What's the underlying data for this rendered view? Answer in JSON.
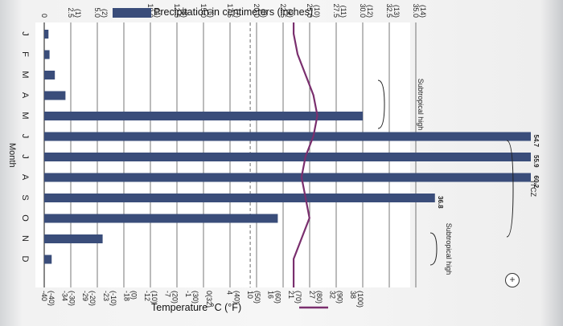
{
  "chart_data": {
    "type": "bar",
    "orientation": "rotated 90° clockwise (month axis runs left to right along the bottom, value axes rotated)",
    "legend": [
      {
        "label": "Precipitation in centimeters (inches)",
        "color": "#3a4d7a"
      },
      {
        "label": "Temperature °C (°F)",
        "color": "#7a2f6e"
      }
    ],
    "xlabel": "Month",
    "categories": [
      "J",
      "F",
      "M",
      "A",
      "M",
      "J",
      "J",
      "A",
      "S",
      "O",
      "N",
      "D"
    ],
    "precip_ticks": [
      {
        "top": "0",
        "bottom": ""
      },
      {
        "top": "2.5",
        "bottom": "(1)"
      },
      {
        "top": "5.0",
        "bottom": "(2)"
      },
      {
        "top": "7.5",
        "bottom": "(3)"
      },
      {
        "top": "10.0",
        "bottom": "(4)"
      },
      {
        "top": "12.5",
        "bottom": "(5)"
      },
      {
        "top": "15.0",
        "bottom": "(6)"
      },
      {
        "top": "17.5",
        "bottom": "(7)"
      },
      {
        "top": "20.0",
        "bottom": "(8)"
      },
      {
        "top": "22.5",
        "bottom": "(9)"
      },
      {
        "top": "25.0",
        "bottom": "(10)"
      },
      {
        "top": "27.5",
        "bottom": "(11)"
      },
      {
        "top": "30.0",
        "bottom": "(12)"
      },
      {
        "top": "32.5",
        "bottom": "(13)"
      },
      {
        "top": "35.0",
        "bottom": "(14)"
      }
    ],
    "temp_ticks": [
      {
        "top": "-40",
        "bottom": "(-40)"
      },
      {
        "top": "-34",
        "bottom": "(-30)"
      },
      {
        "top": "-29",
        "bottom": "(-20)"
      },
      {
        "top": "-23",
        "bottom": "(-10)"
      },
      {
        "top": "-18",
        "bottom": "(0)"
      },
      {
        "top": "-12",
        "bottom": "(10)"
      },
      {
        "top": "-7",
        "bottom": "(20)"
      },
      {
        "top": "-1",
        "bottom": "(30)"
      },
      {
        "top": "0(32)",
        "bottom": ""
      },
      {
        "top": "4",
        "bottom": "(40)"
      },
      {
        "top": "10",
        "bottom": "(50)"
      },
      {
        "top": "16",
        "bottom": "(60)"
      },
      {
        "top": "21",
        "bottom": "(70)"
      },
      {
        "top": "27",
        "bottom": "(80)"
      },
      {
        "top": "32",
        "bottom": "(90)"
      },
      {
        "top": "38",
        "bottom": "(100)"
      }
    ],
    "values": [
      0.4,
      0.5,
      1.0,
      2.0,
      30.0,
      54.7,
      55.9,
      60.2,
      36.8,
      22.0,
      5.5,
      0.7
    ],
    "bar_labels": [
      "",
      "",
      "",
      "",
      "",
      "54.7",
      "55.9",
      "60.2",
      "36.8",
      "",
      "",
      ""
    ],
    "annotations": [
      "Subtropical high",
      "ITCZ",
      "Subtropical high"
    ],
    "temperature_range_c": [
      24,
      30
    ]
  },
  "ui": {
    "zoom_icon": "zoom-in-icon"
  }
}
